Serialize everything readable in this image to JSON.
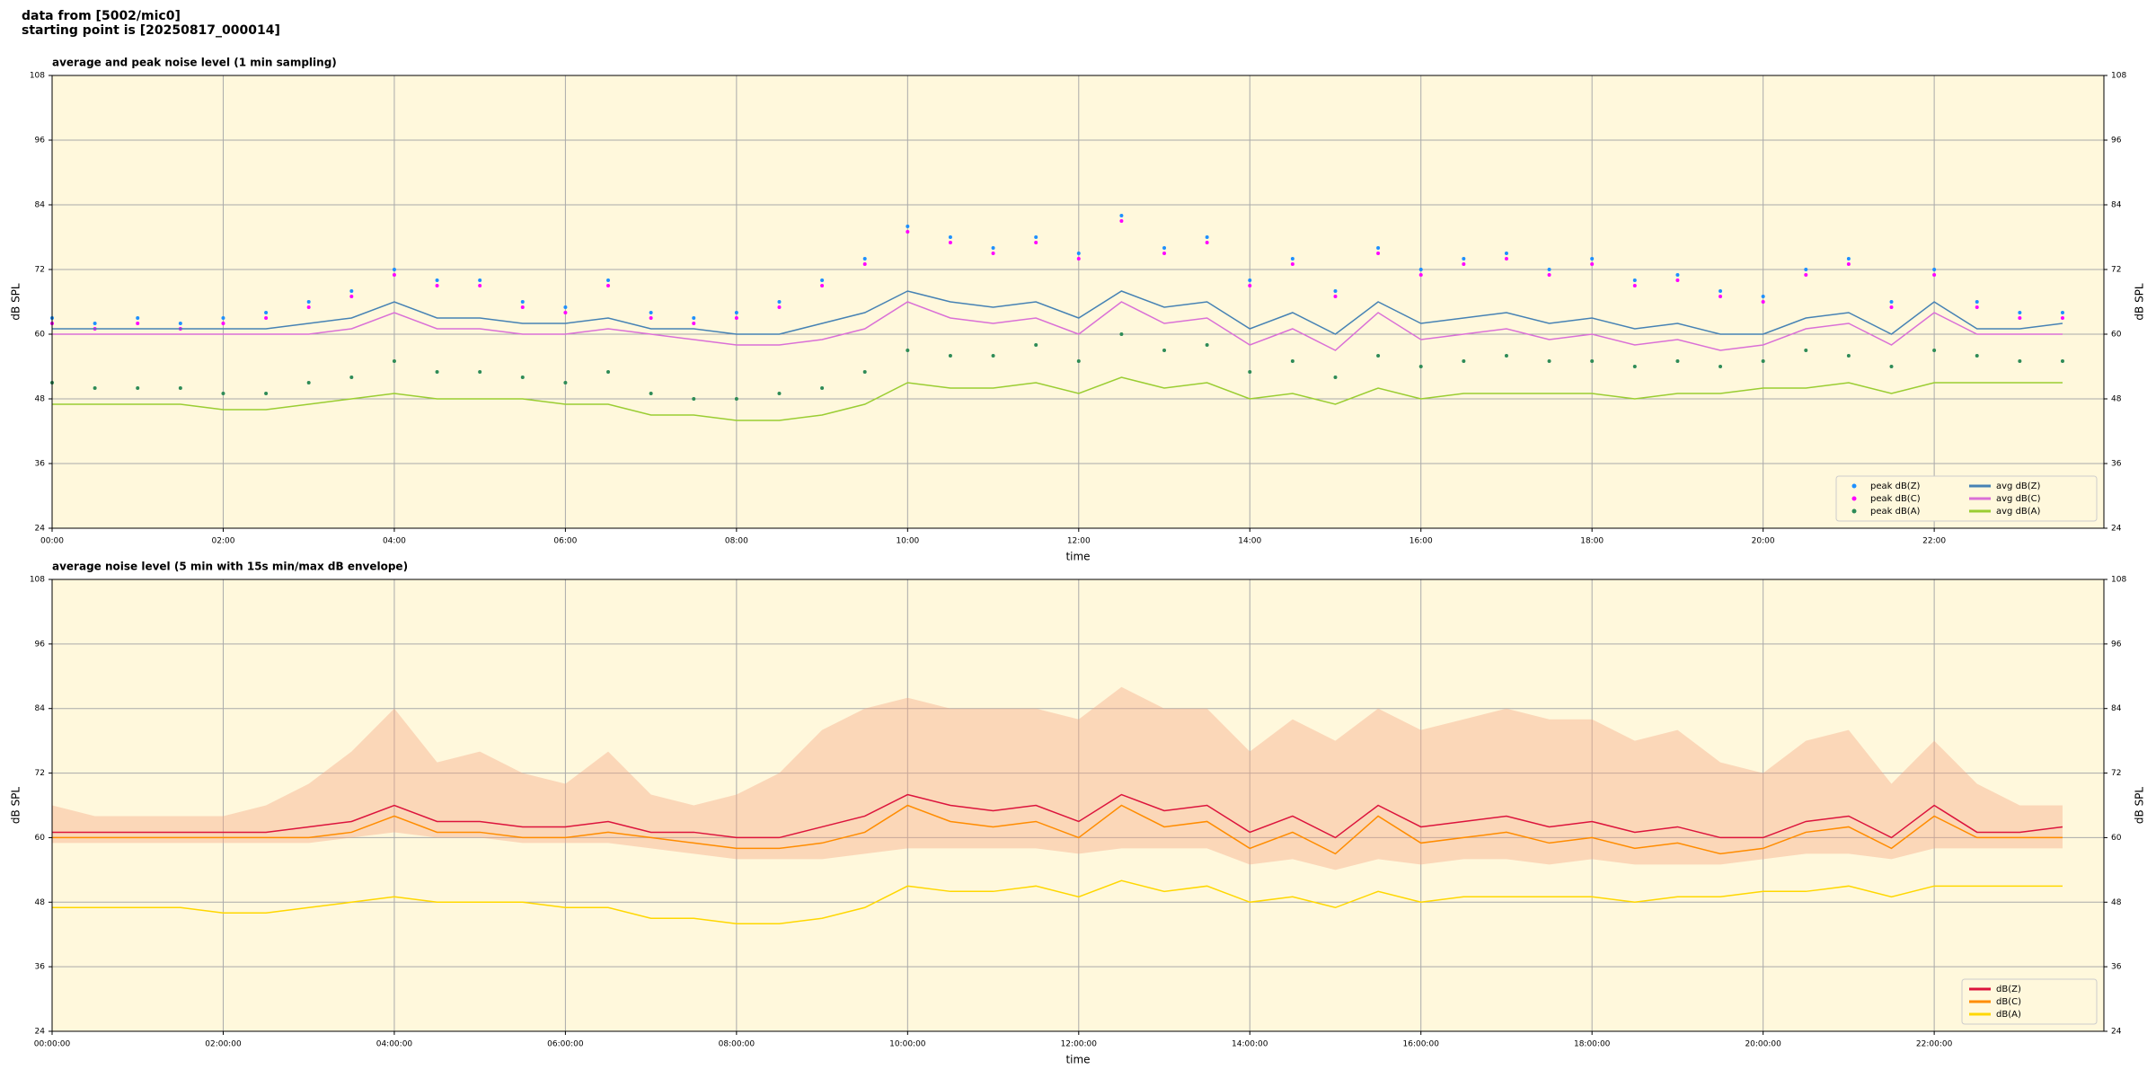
{
  "header": [
    "data from [5002/mic0]",
    "starting point is [20250817_000014]"
  ],
  "chart_data": [
    {
      "type": "line",
      "title": "average and peak noise level (1 min sampling)",
      "xlabel": "time",
      "ylabel": "dB SPL",
      "x": [
        "00:00",
        "00:30",
        "01:00",
        "01:30",
        "02:00",
        "02:30",
        "03:00",
        "03:30",
        "04:00",
        "04:30",
        "05:00",
        "05:30",
        "06:00",
        "06:30",
        "07:00",
        "07:30",
        "08:00",
        "08:30",
        "09:00",
        "09:30",
        "10:00",
        "10:30",
        "11:00",
        "11:30",
        "12:00",
        "12:30",
        "13:00",
        "13:30",
        "14:00",
        "14:30",
        "15:00",
        "15:30",
        "16:00",
        "16:30",
        "17:00",
        "17:30",
        "18:00",
        "18:30",
        "19:00",
        "19:30",
        "20:00",
        "20:30",
        "21:00",
        "21:30",
        "22:00",
        "22:30",
        "23:00",
        "23:30"
      ],
      "xlim": [
        "00:00",
        "23:59"
      ],
      "xticks": [
        "00:00",
        "02:00",
        "04:00",
        "06:00",
        "08:00",
        "10:00",
        "12:00",
        "14:00",
        "16:00",
        "18:00",
        "20:00",
        "22:00"
      ],
      "ylim": [
        24,
        108
      ],
      "yticks": [
        24,
        36,
        48,
        60,
        72,
        84,
        96,
        108
      ],
      "grid": true,
      "legend": "lower right",
      "legend_columns": 2,
      "series": [
        {
          "name": "peak dB(Z)",
          "kind": "scatter",
          "color": "#1e90ff",
          "values": [
            63,
            62,
            63,
            62,
            63,
            64,
            66,
            68,
            72,
            70,
            70,
            66,
            65,
            70,
            64,
            63,
            64,
            66,
            70,
            74,
            80,
            78,
            76,
            78,
            75,
            82,
            76,
            78,
            70,
            74,
            68,
            76,
            72,
            74,
            75,
            72,
            74,
            70,
            71,
            68,
            67,
            72,
            74,
            66,
            72,
            66,
            64,
            64
          ]
        },
        {
          "name": "peak dB(C)",
          "kind": "scatter",
          "color": "#ff00ff",
          "values": [
            62,
            61,
            62,
            61,
            62,
            63,
            65,
            67,
            71,
            69,
            69,
            65,
            64,
            69,
            63,
            62,
            63,
            65,
            69,
            73,
            79,
            77,
            75,
            77,
            74,
            81,
            75,
            77,
            69,
            73,
            67,
            75,
            71,
            73,
            74,
            71,
            73,
            69,
            70,
            67,
            66,
            71,
            73,
            65,
            71,
            65,
            63,
            63
          ]
        },
        {
          "name": "peak dB(A)",
          "kind": "scatter",
          "color": "#2e8b57",
          "values": [
            51,
            50,
            50,
            50,
            49,
            49,
            51,
            52,
            55,
            53,
            53,
            52,
            51,
            53,
            49,
            48,
            48,
            49,
            50,
            53,
            57,
            56,
            56,
            58,
            55,
            60,
            57,
            58,
            53,
            55,
            52,
            56,
            54,
            55,
            56,
            55,
            55,
            54,
            55,
            54,
            55,
            57,
            56,
            54,
            57,
            56,
            55,
            55
          ]
        },
        {
          "name": "avg dB(Z)",
          "kind": "line",
          "color": "#4682b4",
          "values": [
            61,
            61,
            61,
            61,
            61,
            61,
            62,
            63,
            66,
            63,
            63,
            62,
            62,
            63,
            61,
            61,
            60,
            60,
            62,
            64,
            68,
            66,
            65,
            66,
            63,
            68,
            65,
            66,
            61,
            64,
            60,
            66,
            62,
            63,
            64,
            62,
            63,
            61,
            62,
            60,
            60,
            63,
            64,
            60,
            66,
            61,
            61,
            62
          ]
        },
        {
          "name": "avg dB(C)",
          "kind": "line",
          "color": "#da70d6",
          "values": [
            60,
            60,
            60,
            60,
            60,
            60,
            60,
            61,
            64,
            61,
            61,
            60,
            60,
            61,
            60,
            59,
            58,
            58,
            59,
            61,
            66,
            63,
            62,
            63,
            60,
            66,
            62,
            63,
            58,
            61,
            57,
            64,
            59,
            60,
            61,
            59,
            60,
            58,
            59,
            57,
            58,
            61,
            62,
            58,
            64,
            60,
            60,
            60
          ]
        },
        {
          "name": "avg dB(A)",
          "kind": "line",
          "color": "#9acd32",
          "values": [
            47,
            47,
            47,
            47,
            46,
            46,
            47,
            48,
            49,
            48,
            48,
            48,
            47,
            47,
            45,
            45,
            44,
            44,
            45,
            47,
            51,
            50,
            50,
            51,
            49,
            52,
            50,
            51,
            48,
            49,
            47,
            50,
            48,
            49,
            49,
            49,
            49,
            48,
            49,
            49,
            50,
            50,
            51,
            49,
            51,
            51,
            51,
            51
          ]
        }
      ]
    },
    {
      "type": "line",
      "title": "average noise level (5 min with 15s min/max dB envelope)",
      "xlabel": "time",
      "ylabel": "dB SPL",
      "x": [
        "00:00:00",
        "00:30:00",
        "01:00:00",
        "01:30:00",
        "02:00:00",
        "02:30:00",
        "03:00:00",
        "03:30:00",
        "04:00:00",
        "04:30:00",
        "05:00:00",
        "05:30:00",
        "06:00:00",
        "06:30:00",
        "07:00:00",
        "07:30:00",
        "08:00:00",
        "08:30:00",
        "09:00:00",
        "09:30:00",
        "10:00:00",
        "10:30:00",
        "11:00:00",
        "11:30:00",
        "12:00:00",
        "12:30:00",
        "13:00:00",
        "13:30:00",
        "14:00:00",
        "14:30:00",
        "15:00:00",
        "15:30:00",
        "16:00:00",
        "16:30:00",
        "17:00:00",
        "17:30:00",
        "18:00:00",
        "18:30:00",
        "19:00:00",
        "19:30:00",
        "20:00:00",
        "20:30:00",
        "21:00:00",
        "21:30:00",
        "22:00:00",
        "22:30:00",
        "23:00:00",
        "23:30:00"
      ],
      "xlim": [
        "00:00:00",
        "23:59:00"
      ],
      "xticks": [
        "00:00:00",
        "02:00:00",
        "04:00:00",
        "06:00:00",
        "08:00:00",
        "10:00:00",
        "12:00:00",
        "14:00:00",
        "16:00:00",
        "18:00:00",
        "20:00:00",
        "22:00:00"
      ],
      "ylim": [
        24,
        108
      ],
      "yticks": [
        24,
        36,
        48,
        60,
        72,
        84,
        96,
        108
      ],
      "grid": true,
      "legend": "lower right",
      "legend_columns": 1,
      "envelope": {
        "color": "#f4a582",
        "upper": [
          66,
          64,
          64,
          64,
          64,
          66,
          70,
          76,
          84,
          74,
          76,
          72,
          70,
          76,
          68,
          66,
          68,
          72,
          80,
          84,
          86,
          84,
          84,
          84,
          82,
          88,
          84,
          84,
          76,
          82,
          78,
          84,
          80,
          82,
          84,
          82,
          82,
          78,
          80,
          74,
          72,
          78,
          80,
          70,
          78,
          70,
          66,
          66
        ],
        "lower": [
          59,
          59,
          59,
          59,
          59,
          59,
          59,
          60,
          61,
          60,
          60,
          59,
          59,
          59,
          58,
          57,
          56,
          56,
          56,
          57,
          58,
          58,
          58,
          58,
          57,
          58,
          58,
          58,
          55,
          56,
          54,
          56,
          55,
          56,
          56,
          55,
          56,
          55,
          55,
          55,
          56,
          57,
          57,
          56,
          58,
          58,
          58,
          58
        ]
      },
      "series": [
        {
          "name": "dB(Z)",
          "kind": "line",
          "color": "#dc143c",
          "values": [
            61,
            61,
            61,
            61,
            61,
            61,
            62,
            63,
            66,
            63,
            63,
            62,
            62,
            63,
            61,
            61,
            60,
            60,
            62,
            64,
            68,
            66,
            65,
            66,
            63,
            68,
            65,
            66,
            61,
            64,
            60,
            66,
            62,
            63,
            64,
            62,
            63,
            61,
            62,
            60,
            60,
            63,
            64,
            60,
            66,
            61,
            61,
            62
          ]
        },
        {
          "name": "dB(C)",
          "kind": "line",
          "color": "#ff8c00",
          "values": [
            60,
            60,
            60,
            60,
            60,
            60,
            60,
            61,
            64,
            61,
            61,
            60,
            60,
            61,
            60,
            59,
            58,
            58,
            59,
            61,
            66,
            63,
            62,
            63,
            60,
            66,
            62,
            63,
            58,
            61,
            57,
            64,
            59,
            60,
            61,
            59,
            60,
            58,
            59,
            57,
            58,
            61,
            62,
            58,
            64,
            60,
            60,
            60
          ]
        },
        {
          "name": "dB(A)",
          "kind": "line",
          "color": "#ffd700",
          "values": [
            47,
            47,
            47,
            47,
            46,
            46,
            47,
            48,
            49,
            48,
            48,
            48,
            47,
            47,
            45,
            45,
            44,
            44,
            45,
            47,
            51,
            50,
            50,
            51,
            49,
            52,
            50,
            51,
            48,
            49,
            47,
            50,
            48,
            49,
            49,
            49,
            49,
            48,
            49,
            49,
            50,
            50,
            51,
            49,
            51,
            51,
            51,
            51
          ]
        }
      ]
    }
  ]
}
